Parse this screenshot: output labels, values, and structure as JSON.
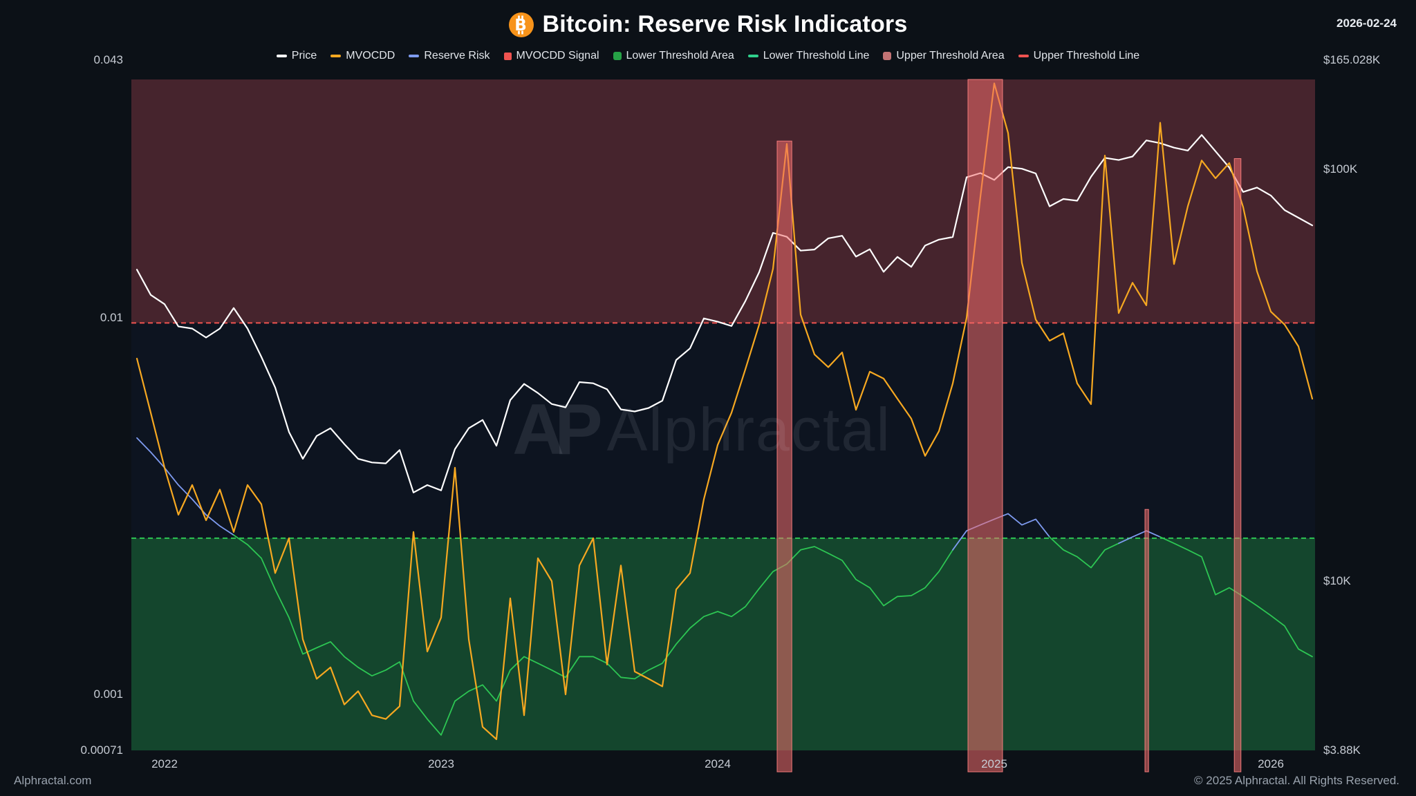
{
  "header": {
    "title": "Bitcoin: Reserve Risk Indicators",
    "date": "2026-02-24"
  },
  "watermark": {
    "logo": "AP",
    "text": "Alphractal"
  },
  "footer": {
    "site": "Alphractal.com",
    "copyright": "© 2025 Alphractal. All Rights Reserved."
  },
  "legend": [
    {
      "label": "Price",
      "color": "#ffffff",
      "marker": "line"
    },
    {
      "label": "MVOCDD",
      "color": "#f6a821",
      "marker": "line"
    },
    {
      "label": "Reserve Risk",
      "color": "#7e9bf0",
      "marker": "line"
    },
    {
      "label": "MVOCDD Signal",
      "color": "#ef5350",
      "marker": "square"
    },
    {
      "label": "Lower Threshold Area",
      "color": "#2dc653",
      "marker": "area"
    },
    {
      "label": "Lower Threshold Line",
      "color": "#2fd08c",
      "marker": "line"
    },
    {
      "label": "Upper Threshold Area",
      "color": "#f08c8c",
      "marker": "area"
    },
    {
      "label": "Upper Threshold Line",
      "color": "#ef5350",
      "marker": "line"
    }
  ],
  "chart_data": {
    "type": "line",
    "title": "Bitcoin: Reserve Risk Indicators",
    "x_domain": [
      2021.88,
      2026.16
    ],
    "x_ticks": [
      {
        "value": 2022,
        "label": "2022"
      },
      {
        "value": 2023,
        "label": "2023"
      },
      {
        "value": 2024,
        "label": "2024"
      },
      {
        "value": 2025,
        "label": "2025"
      },
      {
        "value": 2026,
        "label": "2026"
      }
    ],
    "left_axis": {
      "scale": "log",
      "domain": [
        0.00071,
        0.043
      ],
      "ticks": [
        {
          "value": 0.043,
          "label": "0.043"
        },
        {
          "value": 0.01,
          "label": "0.01"
        },
        {
          "value": 0.001,
          "label": "0.001"
        },
        {
          "value": 0.00071,
          "label": "0.00071"
        }
      ]
    },
    "right_axis": {
      "scale": "log",
      "domain": [
        3880,
        165028
      ],
      "ticks": [
        {
          "value": 165028,
          "label": "$165.028K"
        },
        {
          "value": 100000,
          "label": "$100K"
        },
        {
          "value": 10000,
          "label": "$10K"
        },
        {
          "value": 3880,
          "label": "$3.88K"
        }
      ]
    },
    "thresholds": {
      "upper": 0.0097,
      "lower": 0.0026
    },
    "signal_bands": [
      {
        "t0": 2024.215,
        "t1": 2024.268,
        "top": 0.0295
      },
      {
        "t0": 2024.905,
        "t1": 2025.03,
        "top": 0.043
      },
      {
        "t0": 2025.545,
        "t1": 2025.558,
        "top": 0.0031
      },
      {
        "t0": 2025.868,
        "t1": 2025.892,
        "top": 0.0265
      }
    ],
    "colors": {
      "plot_bg": "#0d1420",
      "upper_area": "rgba(234,84,85,0.26)",
      "upper_line": "#ef5350",
      "lower_area": "rgba(40,200,80,0.28)",
      "lower_line": "#2dc653",
      "band_fill": "rgba(242,107,107,0.55)",
      "band_stroke": "rgba(255,130,130,0.9)"
    },
    "x": [
      2021.9,
      2021.95,
      2022,
      2022.05,
      2022.1,
      2022.15,
      2022.2,
      2022.25,
      2022.3,
      2022.35,
      2022.4,
      2022.45,
      2022.5,
      2022.55,
      2022.6,
      2022.65,
      2022.7,
      2022.75,
      2022.8,
      2022.85,
      2022.9,
      2022.95,
      2023,
      2023.05,
      2023.1,
      2023.15,
      2023.2,
      2023.25,
      2023.3,
      2023.35,
      2023.4,
      2023.45,
      2023.5,
      2023.55,
      2023.6,
      2023.65,
      2023.7,
      2023.75,
      2023.8,
      2023.85,
      2023.9,
      2023.95,
      2024,
      2024.05,
      2024.1,
      2024.15,
      2024.2,
      2024.25,
      2024.3,
      2024.35,
      2024.4,
      2024.45,
      2024.5,
      2024.55,
      2024.6,
      2024.65,
      2024.7,
      2024.75,
      2024.8,
      2024.85,
      2024.9,
      2024.95,
      2025,
      2025.05,
      2025.1,
      2025.15,
      2025.2,
      2025.25,
      2025.3,
      2025.35,
      2025.4,
      2025.45,
      2025.5,
      2025.55,
      2025.6,
      2025.65,
      2025.7,
      2025.75,
      2025.8,
      2025.85,
      2025.9,
      2025.95,
      2026,
      2026.05,
      2026.1,
      2026.15
    ],
    "series": [
      {
        "name": "Reserve Risk",
        "axis": "left",
        "split_at": 0.0026,
        "color_above": "#7e9bf0",
        "color_below": "#2dc653",
        "width": 1.8,
        "values": [
          0.0048,
          0.0044,
          0.004,
          0.0036,
          0.0033,
          0.003,
          0.0028,
          0.00265,
          0.0025,
          0.0023,
          0.0019,
          0.0016,
          0.00128,
          0.00133,
          0.00138,
          0.00126,
          0.00118,
          0.00112,
          0.00116,
          0.00122,
          0.00096,
          0.00086,
          0.00078,
          0.00096,
          0.00102,
          0.00106,
          0.00096,
          0.00116,
          0.00126,
          0.00121,
          0.00116,
          0.00111,
          0.00126,
          0.00126,
          0.00121,
          0.00111,
          0.0011,
          0.00116,
          0.00121,
          0.00136,
          0.0015,
          0.00161,
          0.00166,
          0.00161,
          0.00171,
          0.00191,
          0.00212,
          0.00222,
          0.00242,
          0.00247,
          0.00237,
          0.00227,
          0.00202,
          0.00192,
          0.00172,
          0.00182,
          0.00183,
          0.00192,
          0.00212,
          0.00242,
          0.00272,
          0.00282,
          0.00292,
          0.00302,
          0.00282,
          0.00292,
          0.00262,
          0.00242,
          0.00232,
          0.00217,
          0.00242,
          0.00252,
          0.00262,
          0.00272,
          0.00262,
          0.00252,
          0.00242,
          0.00232,
          0.00184,
          0.00192,
          0.00182,
          0.00172,
          0.00162,
          0.00152,
          0.00132,
          0.00126
        ]
      },
      {
        "name": "Price",
        "axis": "right",
        "color": "#ffffff",
        "width": 2.2,
        "values": [
          57000,
          49500,
          47000,
          41500,
          41000,
          39000,
          41000,
          46000,
          41000,
          35000,
          29500,
          23000,
          19800,
          22500,
          23500,
          21500,
          19800,
          19400,
          19300,
          20800,
          16400,
          17100,
          16600,
          20900,
          23500,
          24600,
          21300,
          27500,
          30100,
          28600,
          26900,
          26400,
          30400,
          30200,
          29200,
          26100,
          25800,
          26300,
          27400,
          34400,
          36700,
          43400,
          42600,
          41600,
          47800,
          56200,
          70000,
          68500,
          63400,
          63800,
          67900,
          68900,
          61300,
          63900,
          56300,
          61200,
          57900,
          65200,
          67400,
          68400,
          95500,
          97800,
          94100,
          101100,
          100200,
          97600,
          81200,
          84600,
          83800,
          95800,
          106500,
          105200,
          107300,
          117400,
          115600,
          112700,
          110900,
          121000,
          110500,
          100800,
          88000,
          90200,
          86300,
          79500,
          76200,
          73000
        ]
      },
      {
        "name": "MVOCDD",
        "axis": "left",
        "color": "#f6a821",
        "width": 2.2,
        "values": [
          0.0078,
          0.0056,
          0.004,
          0.003,
          0.0036,
          0.0029,
          0.0035,
          0.0027,
          0.0036,
          0.0032,
          0.0021,
          0.0026,
          0.0014,
          0.0011,
          0.00118,
          0.00094,
          0.00102,
          0.00088,
          0.00086,
          0.00093,
          0.0027,
          0.0013,
          0.0016,
          0.004,
          0.0014,
          0.00082,
          0.00076,
          0.0018,
          0.00088,
          0.0023,
          0.002,
          0.001,
          0.0022,
          0.0026,
          0.0012,
          0.0022,
          0.00115,
          0.0011,
          0.00105,
          0.0019,
          0.0021,
          0.0033,
          0.0046,
          0.0056,
          0.0073,
          0.0096,
          0.0135,
          0.029,
          0.0102,
          0.008,
          0.0074,
          0.0081,
          0.0057,
          0.0072,
          0.0069,
          0.0061,
          0.0054,
          0.0043,
          0.005,
          0.0067,
          0.01,
          0.021,
          0.042,
          0.031,
          0.014,
          0.0099,
          0.0087,
          0.0091,
          0.0067,
          0.0059,
          0.027,
          0.0103,
          0.0124,
          0.0108,
          0.033,
          0.0139,
          0.0198,
          0.0262,
          0.0235,
          0.0258,
          0.0197,
          0.0133,
          0.0104,
          0.0096,
          0.0084,
          0.0061
        ]
      }
    ]
  }
}
